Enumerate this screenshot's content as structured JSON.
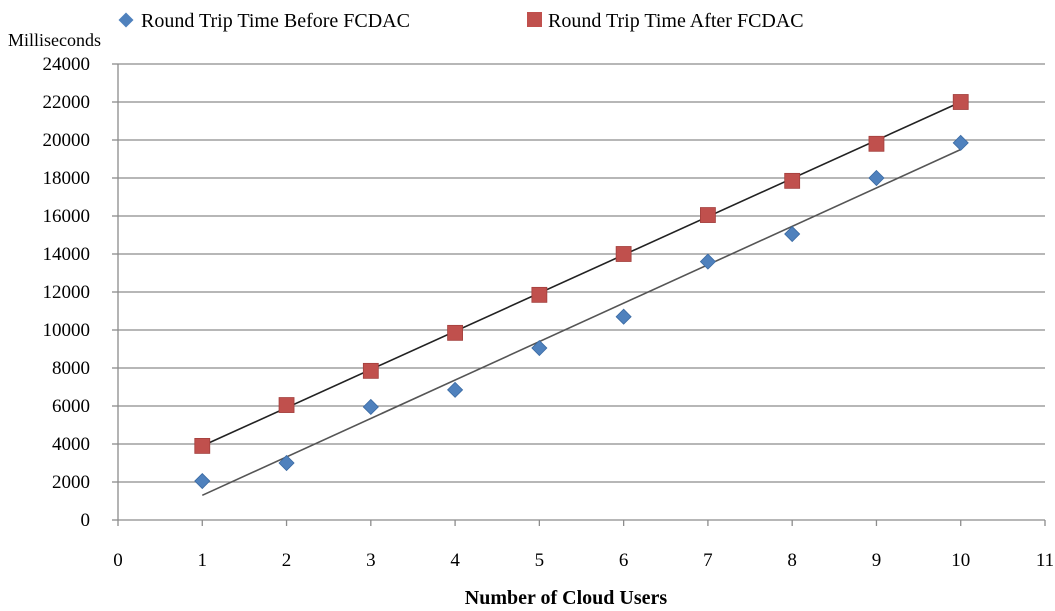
{
  "chart_data": {
    "type": "scatter",
    "ylabel": "Milliseconds",
    "xlabel": "Number of Cloud Users",
    "xlim": [
      0,
      11
    ],
    "ylim": [
      0,
      24000
    ],
    "xticks": [
      0,
      1,
      2,
      3,
      4,
      5,
      6,
      7,
      8,
      9,
      10,
      11
    ],
    "yticks": [
      0,
      2000,
      4000,
      6000,
      8000,
      10000,
      12000,
      14000,
      16000,
      18000,
      20000,
      22000,
      24000
    ],
    "grid": "horizontal",
    "legend_position": "top",
    "series": [
      {
        "name": "Round Trip Time Before FCDAC",
        "marker": "diamond",
        "color": "#4f81bd",
        "x": [
          1,
          2,
          3,
          4,
          5,
          6,
          7,
          8,
          9,
          10
        ],
        "y": [
          2050,
          3000,
          5950,
          6850,
          9050,
          10700,
          13600,
          15050,
          18000,
          19850
        ],
        "trendline": {
          "from": [
            1,
            1300
          ],
          "to": [
            10,
            19500
          ]
        }
      },
      {
        "name": "Round Trip Time After FCDAC",
        "marker": "square",
        "color": "#c0504d",
        "x": [
          1,
          2,
          3,
          4,
          5,
          6,
          7,
          8,
          9,
          10
        ],
        "y": [
          3900,
          6050,
          7850,
          9850,
          11850,
          14000,
          16050,
          17850,
          19800,
          22000
        ],
        "trendline": {
          "from": [
            1,
            3900
          ],
          "to": [
            10,
            22000
          ]
        }
      }
    ]
  }
}
